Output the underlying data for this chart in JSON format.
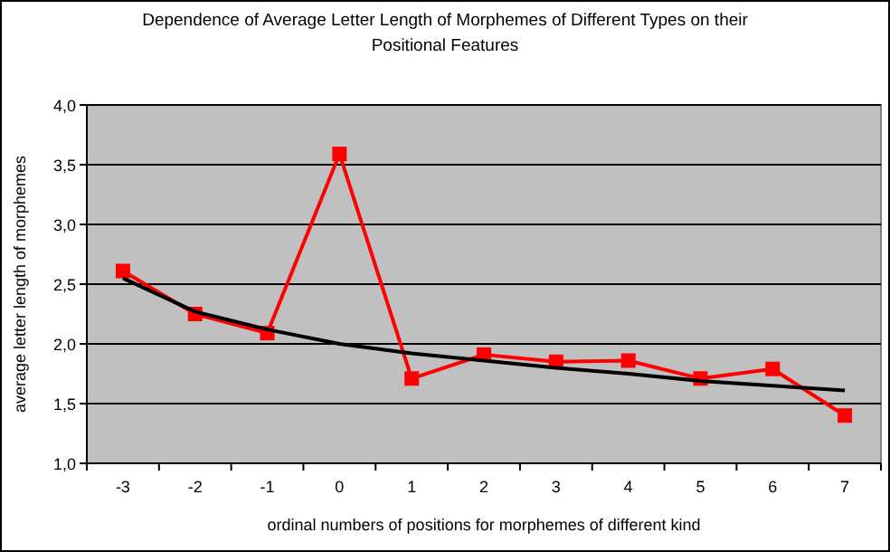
{
  "chart_data": {
    "type": "line",
    "title": "Dependence of Average Letter Length of Morphemes of Different Types on their Positional Features",
    "xlabel": "ordinal numbers of positions for morphemes of different kind",
    "ylabel": "average letter length of morphemes",
    "categories": [
      "-3",
      "-2",
      "-1",
      "0",
      "1",
      "2",
      "3",
      "4",
      "5",
      "6",
      "7"
    ],
    "series": [
      {
        "color": "#ff0000",
        "marker": "square",
        "values": [
          2.61,
          2.25,
          2.09,
          3.59,
          1.71,
          1.91,
          1.85,
          1.86,
          1.71,
          1.79,
          1.4
        ]
      },
      {
        "color": "#000000",
        "marker": "none",
        "values": [
          2.55,
          2.27,
          2.12,
          2.0,
          1.92,
          1.86,
          1.8,
          1.75,
          1.69,
          1.65,
          1.61
        ]
      }
    ],
    "ylim": [
      1,
      4
    ],
    "yticks": [
      {
        "value": 1,
        "label": "1,0"
      },
      {
        "value": 1.5,
        "label": "1,5"
      },
      {
        "value": 2,
        "label": "2,0"
      },
      {
        "value": 2.5,
        "label": "2,5"
      },
      {
        "value": 3,
        "label": "3,0"
      },
      {
        "value": 3.5,
        "label": "3,5"
      },
      {
        "value": 4,
        "label": "4,0"
      }
    ],
    "grid": "y",
    "line_style": "solid"
  }
}
